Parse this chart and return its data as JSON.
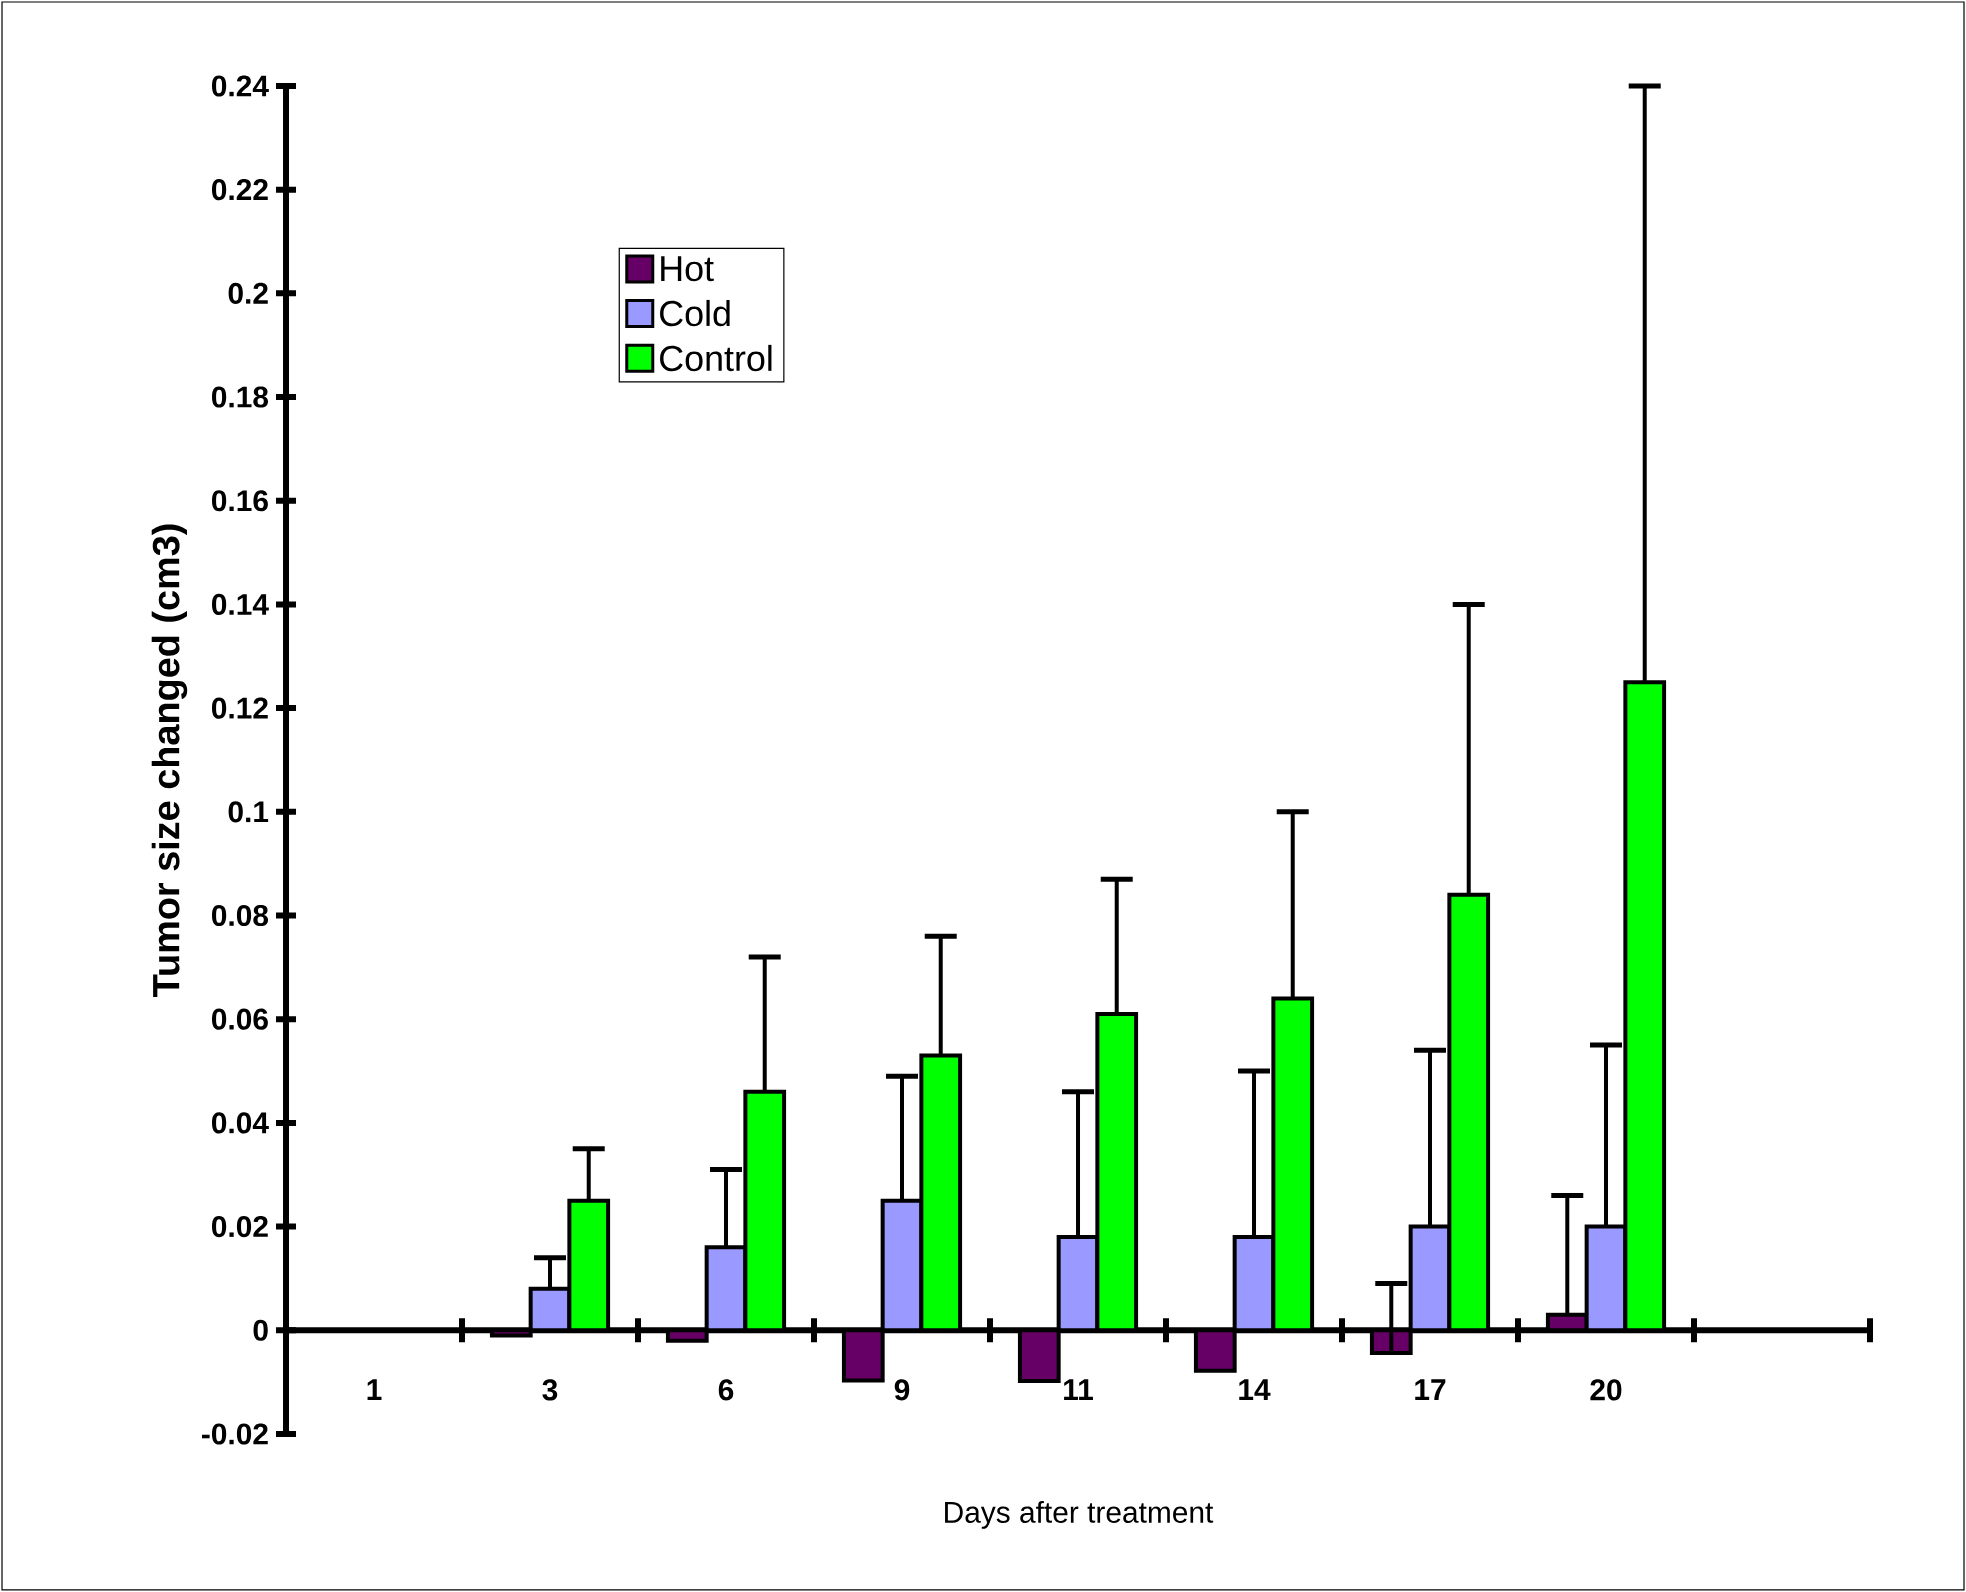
{
  "chart_data": {
    "type": "bar",
    "xlabel": "Days after treatment",
    "ylabel": "Tumor size changed (cm3)",
    "categories": [
      "1",
      "3",
      "6",
      "9",
      "11",
      "14",
      "17",
      "20",
      null
    ],
    "series": [
      {
        "name": "Hot",
        "color": "#660066",
        "values": [
          null,
          -0.001,
          -0.002,
          -0.0097,
          -0.0098,
          -0.0078,
          -0.0044,
          0.003,
          null
        ],
        "errors": [
          null,
          null,
          null,
          null,
          null,
          null,
          [
            -0.0044,
            0.009
          ],
          [
            0.003,
            0.026
          ],
          null
        ]
      },
      {
        "name": "Cold",
        "color": "#9999ff",
        "values": [
          null,
          0.008,
          0.016,
          0.025,
          0.018,
          0.018,
          0.02,
          0.02,
          null
        ],
        "errors": [
          null,
          [
            0.008,
            0.014
          ],
          [
            0.016,
            0.031
          ],
          [
            0.025,
            0.049
          ],
          [
            0.018,
            0.046
          ],
          [
            0.018,
            0.05
          ],
          [
            0.02,
            0.054
          ],
          [
            0.02,
            0.055
          ],
          null
        ]
      },
      {
        "name": "Control",
        "color": "#00ff00",
        "values": [
          null,
          0.025,
          0.046,
          0.053,
          0.061,
          0.064,
          0.084,
          0.125,
          null
        ],
        "errors": [
          null,
          [
            0.025,
            0.035
          ],
          [
            0.046,
            0.072
          ],
          [
            0.053,
            0.076
          ],
          [
            0.061,
            0.087
          ],
          [
            0.064,
            0.1
          ],
          [
            0.084,
            0.14
          ],
          [
            0.125,
            0.24
          ],
          null
        ]
      }
    ],
    "ylim": [
      -0.02,
      0.24
    ],
    "yticks": [
      -0.02,
      0,
      0.02,
      0.04,
      0.06,
      0.08,
      0.1,
      0.12,
      0.14,
      0.16,
      0.18,
      0.2,
      0.22,
      0.24
    ],
    "grid": false,
    "legend": "top left"
  }
}
